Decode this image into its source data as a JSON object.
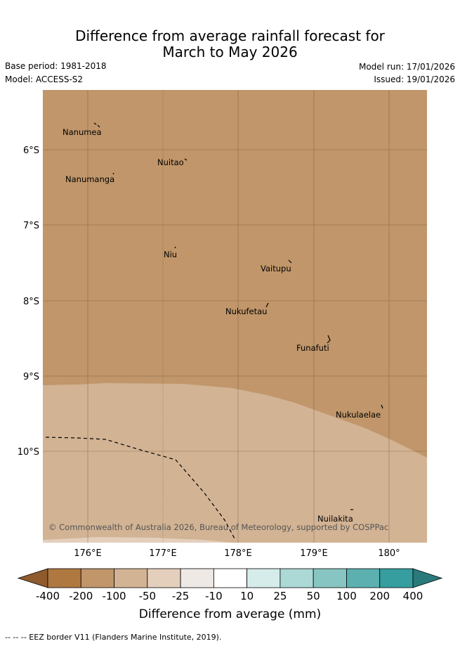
{
  "header": {
    "title_line1": "Difference from average rainfall forecast for",
    "title_line2": "March to May 2026",
    "base_period": "Base period: 1981-2018",
    "model": "Model: ACCESS-S2",
    "model_run": "Model run: 17/01/2026",
    "issued": "Issued: 19/01/2026"
  },
  "map": {
    "lat_ticks": [
      "6°S",
      "7°S",
      "8°S",
      "9°S",
      "10°S"
    ],
    "lon_ticks": [
      "176°E",
      "177°E",
      "178°E",
      "179°E",
      "180°"
    ],
    "places": [
      "Nanumea",
      "Nuitao",
      "Nanumanga",
      "Niu",
      "Vaitupu",
      "Nukufetau",
      "Funafuti",
      "Nukulaelae",
      "Nuilakita"
    ],
    "regions": [
      {
        "category": "-200 to -100",
        "color": "#c0966a",
        "area": "north"
      },
      {
        "category": "-100 to -50",
        "color": "#d2b394",
        "area": "south"
      }
    ],
    "grid_color": "#6b4a2e",
    "eez_line_style": "dashed",
    "copyright": "© Commonwealth of Australia 2026, Bureau of Meteorology, supported by COSPPac"
  },
  "colorbar": {
    "labels": [
      "-400",
      "-200",
      "-100",
      "-50",
      "-25",
      "-10",
      "10",
      "25",
      "50",
      "100",
      "200",
      "400"
    ],
    "colors": [
      "#8f5a2d",
      "#b07841",
      "#c0966a",
      "#d2b394",
      "#e4cfbd",
      "#efe9e5",
      "#ffffff",
      "#d6ecea",
      "#acd8d5",
      "#87c5c2",
      "#5cb0b0",
      "#369e9e",
      "#2a7a7c"
    ],
    "title": "Difference from average (mm)"
  },
  "footer": {
    "eez_note": "-- -- -- EEZ border V11 (Flanders Marine Institute, 2019)."
  }
}
